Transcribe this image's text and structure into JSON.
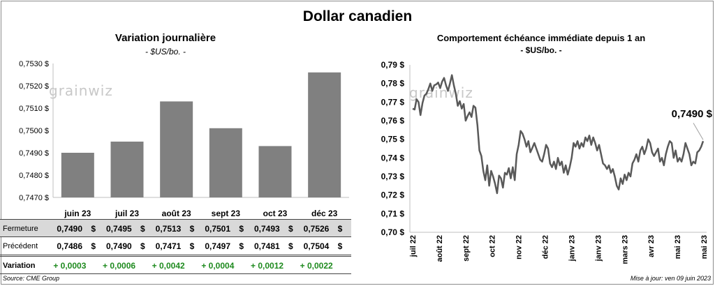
{
  "title": "Dollar canadien",
  "watermark": "grainwiz",
  "footer": {
    "source": "Source: CME Group",
    "updated": "Mise à jour: ven 09 juin 2023"
  },
  "chart_data": [
    {
      "type": "bar",
      "title": "Variation  journalière",
      "subtitle": "- $US/bo. -",
      "categories": [
        "juin 23",
        "juil 23",
        "août 23",
        "sept 23",
        "oct 23",
        "déc 23"
      ],
      "values": [
        0.749,
        0.7495,
        0.7513,
        0.7501,
        0.7493,
        0.7526
      ],
      "ylim": [
        0.747,
        0.753
      ],
      "yticks": [
        "0,7470 $",
        "0,7480 $",
        "0,7490 $",
        "0,7500 $",
        "0,7510 $",
        "0,7520 $",
        "0,7530 $"
      ],
      "bar_color": "#808080",
      "grid": false,
      "table": {
        "rows": [
          {
            "label": "Fermeture",
            "values": [
              "0,7490",
              "0,7495",
              "0,7513",
              "0,7501",
              "0,7493",
              "0,7526"
            ],
            "suffix": "$"
          },
          {
            "label": "Précédent",
            "values": [
              "0,7486",
              "0,7490",
              "0,7471",
              "0,7497",
              "0,7481",
              "0,7504"
            ],
            "suffix": "$"
          },
          {
            "label": "Variation",
            "values": [
              "+ 0,0003",
              "+ 0,0006",
              "+ 0,0042",
              "+ 0,0004",
              "+ 0,0012",
              "+ 0,0022"
            ],
            "color": "#1e8a1e"
          }
        ]
      }
    },
    {
      "type": "line",
      "title": "Comportement échéance immédiate depuis 1 an",
      "subtitle": "- $US/bo. -",
      "ylim": [
        0.7,
        0.79
      ],
      "yticks": [
        "0,70 $",
        "0,71 $",
        "0,72 $",
        "0,73 $",
        "0,74 $",
        "0,75 $",
        "0,76 $",
        "0,77 $",
        "0,78 $",
        "0,79 $"
      ],
      "xticks": [
        "juil 22",
        "août 22",
        "sept 22",
        "oct 22",
        "nov 22",
        "déc 22",
        "janv 23",
        "janv 23",
        "mars 23",
        "avr 23",
        "mai 23",
        "mai 23"
      ],
      "last_label": "0,7490 $",
      "line_color": "#595959",
      "grid": false,
      "series": [
        {
          "values": [
            0.7665,
            0.766,
            0.7715,
            0.77,
            0.763,
            0.7695,
            0.7735,
            0.7745,
            0.777,
            0.78,
            0.776,
            0.779,
            0.7795,
            0.7805,
            0.7775,
            0.781,
            0.783,
            0.779,
            0.776,
            0.78,
            0.7845,
            0.779,
            0.7745,
            0.768,
            0.7705,
            0.7665,
            0.769,
            0.76,
            0.7625,
            0.7645,
            0.762,
            0.768,
            0.767,
            0.7575,
            0.744,
            0.741,
            0.733,
            0.728,
            0.736,
            0.725,
            0.733,
            0.73,
            0.726,
            0.721,
            0.7305,
            0.729,
            0.724,
            0.732,
            0.731,
            0.7345,
            0.729,
            0.735,
            0.728,
            0.742,
            0.747,
            0.7545,
            0.753,
            0.75,
            0.746,
            0.749,
            0.743,
            0.7455,
            0.748,
            0.745,
            0.742,
            0.739,
            0.738,
            0.742,
            0.747,
            0.745,
            0.737,
            0.735,
            0.738,
            0.734,
            0.74,
            0.736,
            0.738,
            0.732,
            0.736,
            0.731,
            0.735,
            0.74,
            0.748,
            0.746,
            0.749,
            0.745,
            0.748,
            0.746,
            0.751,
            0.749,
            0.752,
            0.747,
            0.751,
            0.748,
            0.744,
            0.747,
            0.742,
            0.737,
            0.736,
            0.734,
            0.736,
            0.732,
            0.734,
            0.73,
            0.725,
            0.723,
            0.729,
            0.726,
            0.731,
            0.728,
            0.732,
            0.73,
            0.737,
            0.739,
            0.742,
            0.738,
            0.744,
            0.746,
            0.742,
            0.745,
            0.75,
            0.748,
            0.743,
            0.741,
            0.743,
            0.745,
            0.738,
            0.74,
            0.736,
            0.742,
            0.746,
            0.749,
            0.748,
            0.74,
            0.744,
            0.738,
            0.74,
            0.738,
            0.742,
            0.748,
            0.745,
            0.742,
            0.736,
            0.738,
            0.737,
            0.743,
            0.744,
            0.746,
            0.749
          ]
        }
      ]
    }
  ]
}
